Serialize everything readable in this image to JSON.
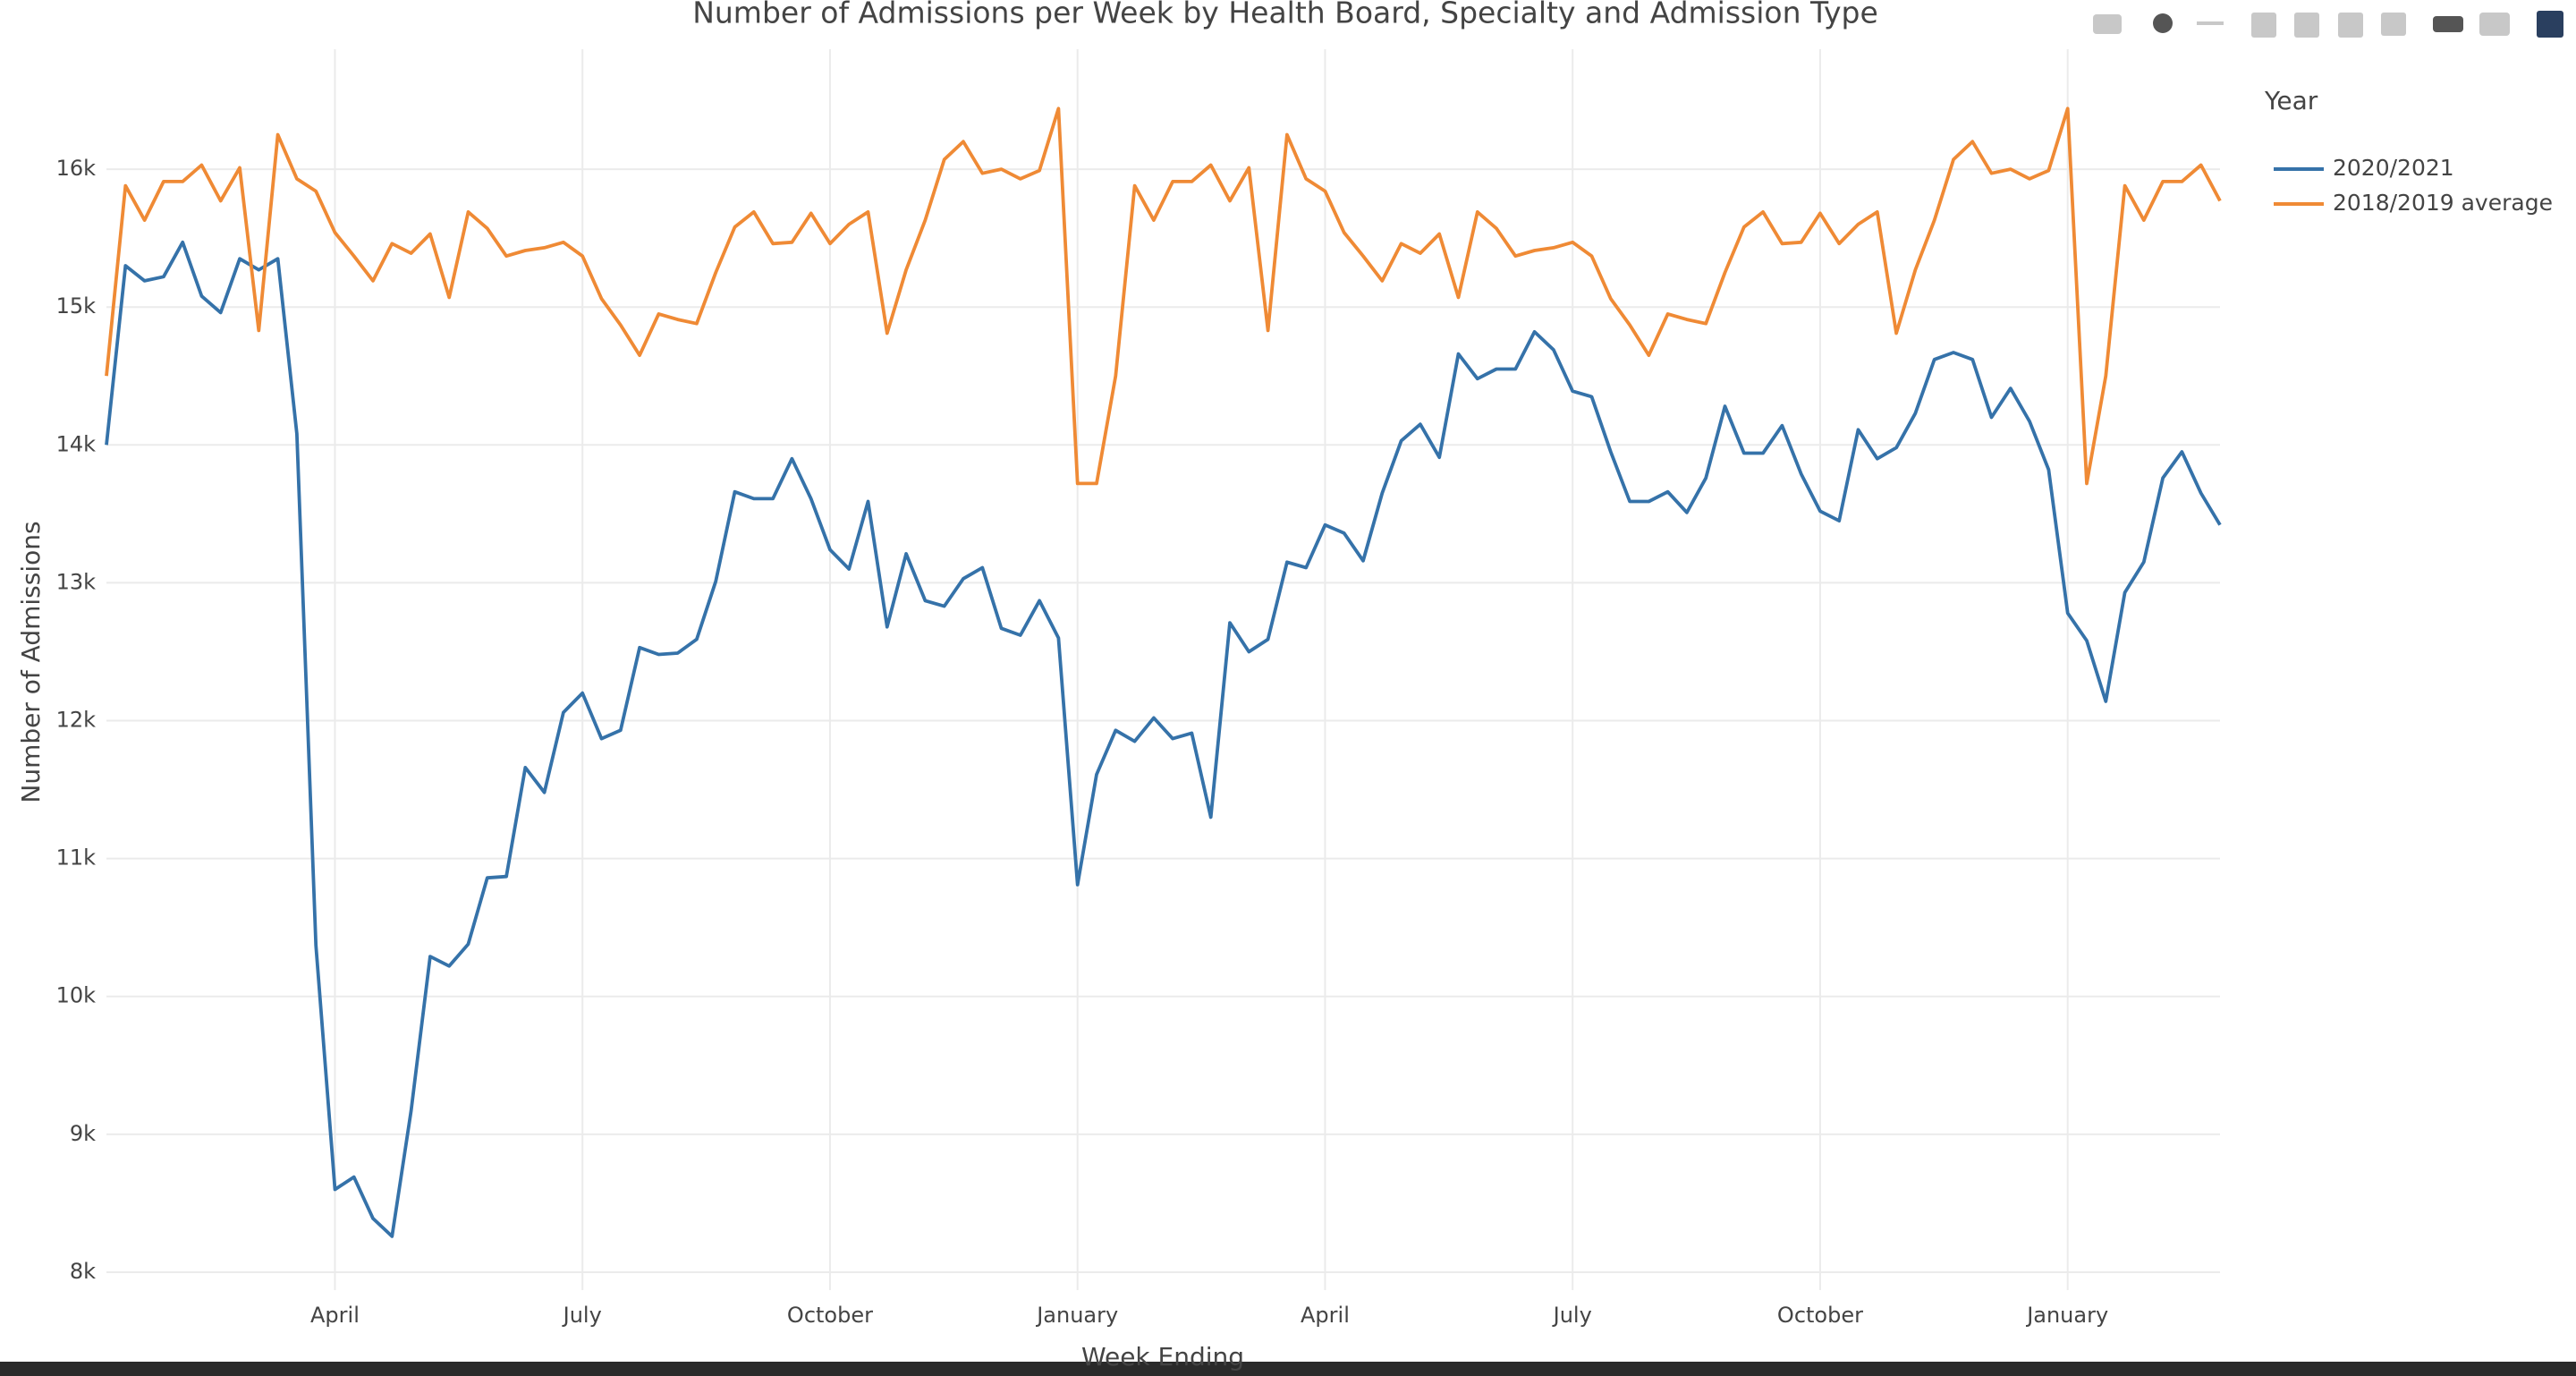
{
  "chart_data": {
    "type": "line",
    "title": "Number of Admissions per Week by Health Board, Specialty and Admission Type",
    "x_label": "Week Ending",
    "y_label": "Number of Admissions",
    "legend_title": "Year",
    "legend": "right",
    "grid": true,
    "categories": [
      null,
      null,
      null,
      null,
      null,
      null,
      null,
      null,
      null,
      null,
      null,
      null,
      "April",
      null,
      null,
      null,
      null,
      null,
      null,
      null,
      null,
      null,
      null,
      null,
      null,
      "July",
      null,
      null,
      null,
      null,
      null,
      null,
      null,
      null,
      null,
      null,
      null,
      null,
      "October",
      null,
      null,
      null,
      null,
      null,
      null,
      null,
      null,
      null,
      null,
      null,
      null,
      "January",
      null,
      null,
      null,
      null,
      null,
      null,
      null,
      null,
      null,
      null,
      null,
      null,
      "April",
      null,
      null,
      null,
      null,
      null,
      null,
      null,
      null,
      null,
      null,
      null,
      null,
      "July",
      null,
      null,
      null,
      null,
      null,
      null,
      null,
      null,
      null,
      null,
      null,
      null,
      "October",
      null,
      null,
      null,
      null,
      null,
      null,
      null,
      null,
      null,
      null,
      null,
      null,
      "January",
      null,
      null,
      null,
      null,
      null,
      null,
      null,
      null
    ],
    "series": [
      {
        "name": "2020/2021",
        "color": "#3572a9",
        "values": [
          14000,
          15300,
          15190,
          15220,
          15470,
          15080,
          14960,
          15350,
          15270,
          15350,
          14080,
          10370,
          8600,
          8690,
          8390,
          8260,
          9170,
          10290,
          10220,
          10380,
          10860,
          10870,
          11660,
          11480,
          12060,
          12200,
          11870,
          11930,
          12530,
          12480,
          12490,
          12590,
          13010,
          13660,
          13610,
          13610,
          13900,
          13610,
          13240,
          13100,
          13590,
          12680,
          13210,
          12870,
          12830,
          13030,
          13110,
          12670,
          12620,
          12870,
          12600,
          10810,
          11610,
          11930,
          11850,
          12020,
          11870,
          11910,
          11300,
          12710,
          12500,
          12590,
          13150,
          13110,
          13420,
          13360,
          13160,
          13650,
          14030,
          14150,
          13910,
          14660,
          14480,
          14550,
          14550,
          14820,
          14690,
          14390,
          14350,
          13950,
          13590,
          13590,
          13660,
          13510,
          13760,
          14280,
          13940,
          13940,
          14140,
          13790,
          13520,
          13450,
          14110,
          13900,
          13980,
          14230,
          14620,
          14670,
          14620,
          14200,
          14410,
          14170,
          13820,
          12780,
          12580,
          12140,
          12930,
          13150,
          13760,
          13950,
          13650,
          13420
        ]
      },
      {
        "name": "2018/2019 average",
        "color": "#ef8a35",
        "values": [
          14500,
          15880,
          15630,
          15910,
          15910,
          16030,
          15770,
          16010,
          14830,
          16250,
          15930,
          15840,
          15540,
          15370,
          15190,
          15460,
          15390,
          15530,
          15070,
          15690,
          15570,
          15370,
          15410,
          15430,
          15470,
          15370,
          15060,
          14870,
          14650,
          14950,
          14910,
          14880,
          15250,
          15580,
          15690,
          15460,
          15470,
          15680,
          15460,
          15600,
          15690,
          14810,
          15270,
          15630,
          16070,
          16200,
          15970,
          16000,
          15930,
          15990,
          16440,
          13720,
          13720,
          14500,
          15880,
          15630,
          15910,
          15910,
          16030,
          15770,
          16010,
          14830,
          16250,
          15930,
          15840,
          15540,
          15370,
          15190,
          15460,
          15390,
          15530,
          15070,
          15690,
          15570,
          15370,
          15410,
          15430,
          15470,
          15370,
          15060,
          14870,
          14650,
          14950,
          14910,
          14880,
          15250,
          15580,
          15690,
          15460,
          15470,
          15680,
          15460,
          15600,
          15690,
          14810,
          15270,
          15630,
          16070,
          16200,
          15970,
          16000,
          15930,
          15990,
          16440,
          13720,
          14500,
          15880,
          15630,
          15910,
          15910,
          16030,
          15770
        ]
      }
    ],
    "ylim": [
      7870,
      16870
    ],
    "yticks": [
      {
        "value": 8000,
        "label": "8k"
      },
      {
        "value": 9000,
        "label": "9k"
      },
      {
        "value": 10000,
        "label": "10k"
      },
      {
        "value": 11000,
        "label": "11k"
      },
      {
        "value": 12000,
        "label": "12k"
      },
      {
        "value": 13000,
        "label": "13k"
      },
      {
        "value": 14000,
        "label": "14k"
      },
      {
        "value": 15000,
        "label": "15k"
      },
      {
        "value": 16000,
        "label": "16k"
      }
    ]
  }
}
